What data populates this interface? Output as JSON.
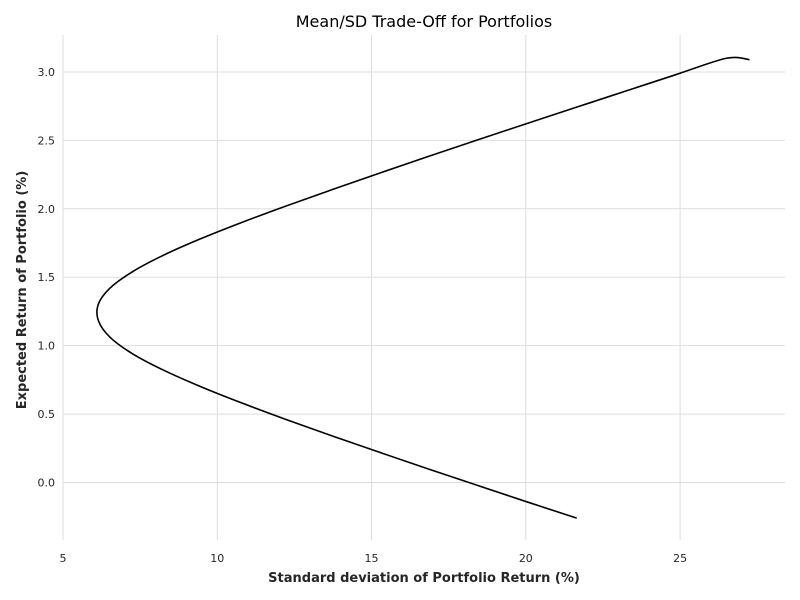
{
  "chart_data": {
    "type": "line",
    "title": "Mean/SD Trade-Off for Portfolios",
    "xlabel": "Standard deviation of Portfolio Return (%)",
    "ylabel": "Expected Return of Portfolio (%)",
    "xlim": [
      5.0,
      28.4
    ],
    "ylim": [
      -0.42,
      3.27
    ],
    "xticks": [
      5,
      10,
      15,
      20,
      25
    ],
    "yticks": [
      0.0,
      0.5,
      1.0,
      1.5,
      2.0,
      2.5,
      3.0
    ],
    "xtick_labels": [
      "5",
      "10",
      "15",
      "20",
      "25"
    ],
    "ytick_labels": [
      "0.0",
      "0.5",
      "1.0",
      "1.5",
      "2.0",
      "2.5",
      "3.0"
    ],
    "grid": true,
    "legend": "none",
    "line_color": "#000000",
    "series": [
      {
        "x": [
          21.65,
          20.02,
          18.42,
          16.83,
          15.27,
          13.73,
          12.24,
          10.81,
          9.47,
          8.27,
          7.26,
          6.53,
          6.15,
          6.14,
          6.52,
          7.25,
          8.25,
          9.45,
          10.79,
          12.22,
          13.72,
          15.25,
          16.81,
          18.39,
          19.99,
          21.61,
          23.23,
          24.86,
          26.5,
          27.25
        ],
        "y": [
          -0.26,
          -0.14,
          -0.02,
          0.1,
          0.22,
          0.34,
          0.46,
          0.58,
          0.7,
          0.82,
          0.94,
          1.06,
          1.18,
          1.3,
          1.42,
          1.54,
          1.66,
          1.78,
          1.9,
          2.02,
          2.14,
          2.26,
          2.38,
          2.5,
          2.62,
          2.74,
          2.86,
          2.98,
          3.1,
          3.09
        ]
      }
    ]
  }
}
